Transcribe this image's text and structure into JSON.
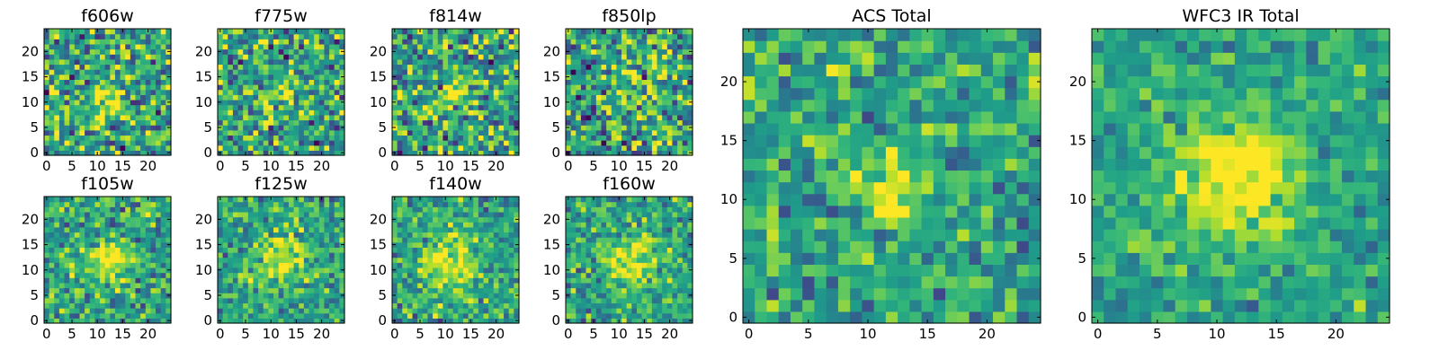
{
  "figure": {
    "title": ""
  },
  "chart_data": [
    {
      "type": "heatmap",
      "title": "f606w",
      "grid_size": 25,
      "xlim": [
        0,
        25
      ],
      "ylim": [
        0,
        25
      ],
      "xticks": [
        0,
        5,
        10,
        15,
        20
      ],
      "yticks": [
        0,
        5,
        10,
        15,
        20
      ],
      "colormap": "viridis",
      "source_center": [
        12.5,
        11.5
      ],
      "source_sigma": 2.6,
      "peak": 0.35,
      "noise": 0.34,
      "seed": 11
    },
    {
      "type": "heatmap",
      "title": "f775w",
      "grid_size": 25,
      "xlim": [
        0,
        25
      ],
      "ylim": [
        0,
        25
      ],
      "xticks": [
        0,
        5,
        10,
        15,
        20
      ],
      "yticks": [
        0,
        5,
        10,
        15,
        20
      ],
      "colormap": "viridis",
      "source_center": [
        12.5,
        11.5
      ],
      "source_sigma": 2.6,
      "peak": 0.2,
      "noise": 0.32,
      "seed": 23
    },
    {
      "type": "heatmap",
      "title": "f814w",
      "grid_size": 25,
      "xlim": [
        0,
        25
      ],
      "ylim": [
        0,
        25
      ],
      "xticks": [
        0,
        5,
        10,
        15,
        20
      ],
      "yticks": [
        0,
        5,
        10,
        15,
        20
      ],
      "colormap": "viridis",
      "source_center": [
        12.5,
        12.5
      ],
      "source_sigma": 2.4,
      "peak": 0.3,
      "noise": 0.34,
      "seed": 37
    },
    {
      "type": "heatmap",
      "title": "f850lp",
      "grid_size": 25,
      "xlim": [
        0,
        25
      ],
      "ylim": [
        0,
        25
      ],
      "xticks": [
        0,
        5,
        10,
        15,
        20
      ],
      "yticks": [
        0,
        5,
        10,
        15,
        20
      ],
      "colormap": "viridis",
      "source_center": [
        13.5,
        13.0
      ],
      "source_sigma": 2.6,
      "peak": 0.25,
      "noise": 0.34,
      "seed": 53
    },
    {
      "type": "heatmap",
      "title": "f105w",
      "grid_size": 25,
      "xlim": [
        0,
        25
      ],
      "ylim": [
        0,
        25
      ],
      "xticks": [
        0,
        5,
        10,
        15,
        20
      ],
      "yticks": [
        0,
        5,
        10,
        15,
        20
      ],
      "colormap": "viridis",
      "source_center": [
        13.0,
        12.5
      ],
      "source_sigma": 3.0,
      "peak": 0.4,
      "noise": 0.24,
      "seed": 71
    },
    {
      "type": "heatmap",
      "title": "f125w",
      "grid_size": 25,
      "xlim": [
        0,
        25
      ],
      "ylim": [
        0,
        25
      ],
      "xticks": [
        0,
        5,
        10,
        15,
        20
      ],
      "yticks": [
        0,
        5,
        10,
        15,
        20
      ],
      "colormap": "viridis",
      "source_center": [
        12.5,
        12.5
      ],
      "source_sigma": 3.4,
      "peak": 0.4,
      "noise": 0.22,
      "seed": 89
    },
    {
      "type": "heatmap",
      "title": "f140w",
      "grid_size": 25,
      "xlim": [
        0,
        25
      ],
      "ylim": [
        0,
        25
      ],
      "xticks": [
        0,
        5,
        10,
        15,
        20
      ],
      "yticks": [
        0,
        5,
        10,
        15,
        20
      ],
      "colormap": "viridis",
      "source_center": [
        11.5,
        11.5
      ],
      "source_sigma": 3.6,
      "peak": 0.4,
      "noise": 0.22,
      "seed": 97
    },
    {
      "type": "heatmap",
      "title": "f160w",
      "grid_size": 25,
      "xlim": [
        0,
        25
      ],
      "ylim": [
        0,
        25
      ],
      "xticks": [
        0,
        5,
        10,
        15,
        20
      ],
      "yticks": [
        0,
        5,
        10,
        15,
        20
      ],
      "colormap": "viridis",
      "source_center": [
        13.5,
        12.5
      ],
      "source_sigma": 3.4,
      "peak": 0.42,
      "noise": 0.22,
      "seed": 113
    },
    {
      "type": "heatmap",
      "title": "ACS Total",
      "grid_size": 25,
      "xlim": [
        0,
        25
      ],
      "ylim": [
        0,
        25
      ],
      "xticks": [
        0,
        5,
        10,
        15,
        20
      ],
      "yticks": [
        0,
        5,
        10,
        15,
        20
      ],
      "colormap": "viridis",
      "source_center": [
        12.5,
        11.5
      ],
      "source_sigma": 2.2,
      "peak": 0.35,
      "noise": 0.22,
      "seed": 131
    },
    {
      "type": "heatmap",
      "title": "WFC3 IR Total",
      "grid_size": 25,
      "xlim": [
        0,
        25
      ],
      "ylim": [
        0,
        25
      ],
      "xticks": [
        0,
        5,
        10,
        15,
        20
      ],
      "yticks": [
        0,
        5,
        10,
        15,
        20
      ],
      "colormap": "viridis",
      "source_center": [
        12.0,
        12.5
      ],
      "source_sigma": 3.4,
      "peak": 0.55,
      "noise": 0.16,
      "seed": 149
    }
  ]
}
